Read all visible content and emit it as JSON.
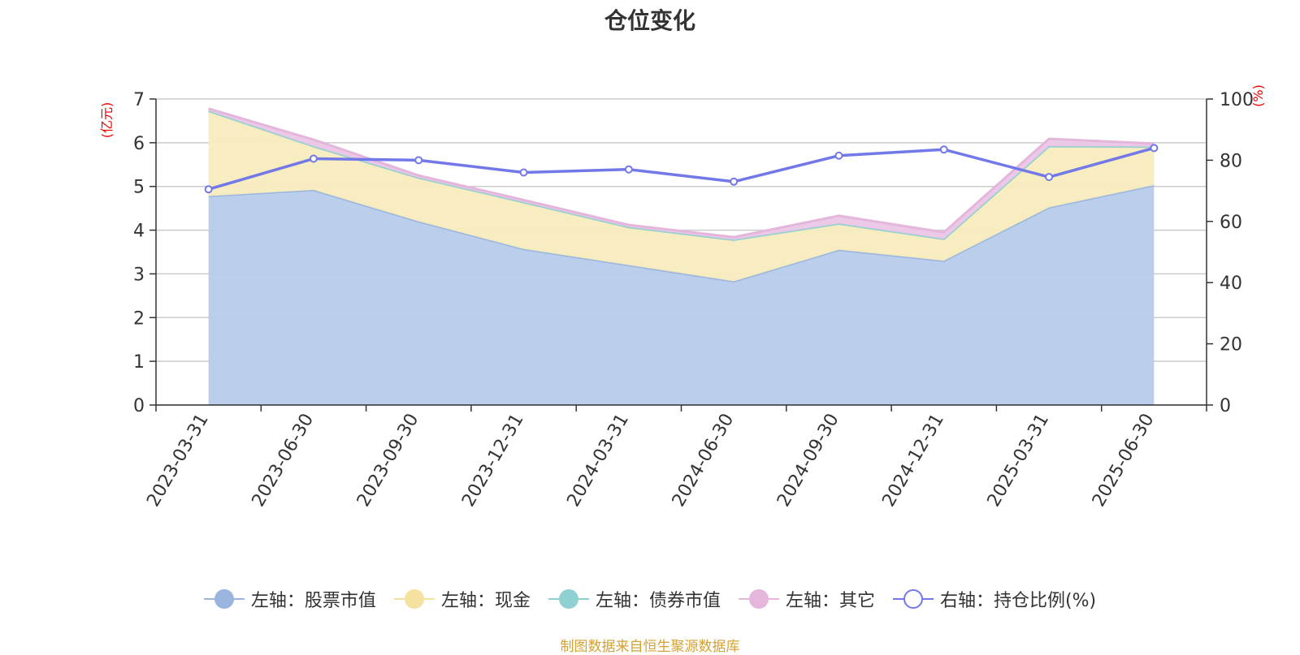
{
  "chart_data": {
    "type": "area",
    "title": "仓位变化",
    "categories": [
      "2023-03-31",
      "2023-06-30",
      "2023-09-30",
      "2023-12-31",
      "2024-03-31",
      "2024-06-30",
      "2024-09-30",
      "2024-12-31",
      "2025-03-31",
      "2025-06-30"
    ],
    "left_axis": {
      "unit": "(亿元)",
      "ylim": [
        0,
        7
      ],
      "ticks": [
        "0",
        "1",
        "2",
        "3",
        "4",
        "5",
        "6",
        "7"
      ]
    },
    "right_axis": {
      "unit": "(%)",
      "ylim": [
        0,
        100
      ],
      "ticks": [
        "0",
        "20",
        "40",
        "60",
        "80",
        "100"
      ]
    },
    "series": [
      {
        "name": "左轴：股票市值",
        "axis": "left",
        "kind": "area",
        "line_color": "#9ab5de",
        "fill_color": "#b7cbea",
        "values": [
          4.78,
          4.92,
          4.2,
          3.57,
          3.2,
          2.83,
          3.55,
          3.3,
          4.52,
          5.03
        ]
      },
      {
        "name": "左轴：现金",
        "axis": "left",
        "kind": "area",
        "line_color": "#f5e2a0",
        "fill_color": "#f8ecbd",
        "values": [
          1.95,
          1.0,
          1.0,
          1.07,
          0.87,
          0.95,
          0.6,
          0.5,
          1.4,
          0.88
        ]
      },
      {
        "name": "左轴：债券市值",
        "axis": "left",
        "kind": "area",
        "line_color": "#8fd1d3",
        "fill_color": "#b9e3e4",
        "values": [
          0,
          0,
          0,
          0,
          0,
          0,
          0,
          0,
          0,
          0
        ]
      },
      {
        "name": "左轴：其它",
        "axis": "left",
        "kind": "area",
        "line_color": "#e4b6dc",
        "fill_color": "#ebc6e5",
        "values": [
          0.05,
          0.15,
          0.05,
          0.05,
          0.05,
          0.06,
          0.18,
          0.15,
          0.17,
          0.07
        ]
      },
      {
        "name": "右轴：持仓比例(%)",
        "axis": "right",
        "kind": "line",
        "line_color": "#7378e8",
        "fill_color": "#ffffff",
        "values": [
          70.5,
          80.5,
          80.0,
          76.0,
          77.0,
          73.0,
          81.5,
          83.5,
          74.5,
          84.0
        ]
      }
    ],
    "grid": true,
    "legend_position": "bottom"
  },
  "source_note": "制图数据来自恒生聚源数据库"
}
